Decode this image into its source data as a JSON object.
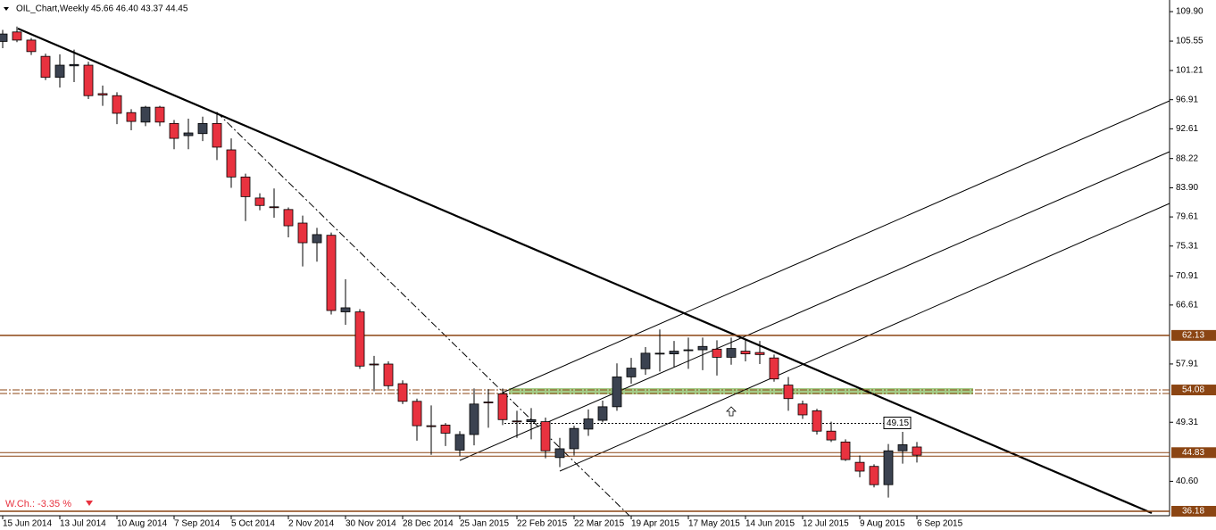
{
  "chart_data": {
    "type": "candlestick",
    "header": "OIL_Chart,Weekly",
    "header_values": "45.66 46.40 43.37 44.45",
    "change_label": "W.Ch.: -3.35 %",
    "categories": [
      "15 Jun 2014",
      null,
      null,
      null,
      "13 Jul 2014",
      null,
      null,
      null,
      "10 Aug 2014",
      null,
      null,
      null,
      "7 Sep 2014",
      null,
      null,
      null,
      "5 Oct 2014",
      null,
      null,
      null,
      "2 Nov 2014",
      null,
      null,
      null,
      "30 Nov 2014",
      null,
      null,
      null,
      "28 Dec 2014",
      null,
      null,
      null,
      "25 Jan 2015",
      null,
      null,
      null,
      "22 Feb 2015",
      null,
      null,
      null,
      "22 Mar 2015",
      null,
      null,
      null,
      "19 Apr 2015",
      null,
      null,
      null,
      "17 May 2015",
      null,
      null,
      null,
      "14 Jun 2015",
      null,
      null,
      null,
      "12 Jul 2015",
      null,
      null,
      null,
      "9 Aug 2015",
      null,
      null,
      null,
      "6 Sep 2015"
    ],
    "open": [
      105.5,
      106.9,
      105.7,
      103.3,
      100.2,
      101.9,
      102.0,
      97.8,
      97.5,
      95.0,
      93.6,
      95.8,
      93.4,
      91.6,
      91.9,
      93.4,
      89.5,
      85.5,
      82.4,
      81.1,
      80.7,
      78.7,
      75.8,
      76.9,
      65.6,
      65.6,
      57.9,
      57.9,
      55.0,
      52.4,
      48.8,
      48.9,
      45.2,
      47.5,
      52.3,
      53.5,
      49.5,
      49.4,
      49.4,
      44.1,
      45.4,
      48.3,
      49.6,
      51.6,
      56.0,
      57.2,
      59.4,
      59.4,
      60.0,
      60.0,
      60.1,
      58.9,
      59.8,
      59.6,
      58.8,
      54.8,
      52.0,
      51.0,
      48.0,
      46.4,
      43.4,
      42.8,
      40.1,
      45.1,
      45.66
    ],
    "high": [
      107.2,
      107.7,
      106.0,
      103.7,
      103.6,
      104.3,
      102.5,
      99.0,
      98.0,
      95.5,
      96.0,
      96.0,
      93.9,
      94.1,
      94.4,
      95.1,
      91.2,
      86.0,
      83.1,
      83.8,
      81.0,
      79.8,
      78.0,
      77.3,
      70.4,
      66.0,
      59.1,
      58.3,
      55.5,
      52.8,
      51.8,
      49.2,
      48.0,
      54.3,
      54.2,
      54.3,
      51.0,
      51.4,
      50.0,
      47.0,
      48.8,
      51.2,
      52.5,
      58.0,
      58.8,
      60.4,
      63.0,
      61.3,
      61.8,
      61.8,
      61.4,
      61.8,
      61.6,
      61.3,
      59.3,
      56.0,
      52.5,
      51.3,
      49.4,
      46.8,
      44.4,
      43.1,
      46.1,
      47.9,
      46.4
    ],
    "low": [
      104.5,
      105.4,
      103.5,
      99.8,
      98.7,
      99.5,
      97.0,
      96.0,
      93.3,
      92.4,
      93.0,
      93.0,
      89.6,
      89.6,
      90.8,
      88.0,
      83.9,
      79.0,
      80.6,
      79.5,
      76.6,
      72.3,
      73.0,
      65.2,
      63.7,
      57.2,
      53.9,
      54.2,
      52.0,
      46.6,
      44.5,
      45.8,
      44.3,
      45.9,
      48.5,
      48.9,
      47.0,
      46.8,
      44.0,
      42.7,
      44.4,
      47.3,
      49.3,
      51.0,
      55.0,
      56.3,
      56.8,
      57.5,
      57.2,
      57.0,
      56.2,
      57.8,
      58.3,
      57.9,
      55.3,
      51.0,
      49.8,
      47.5,
      46.4,
      43.6,
      41.2,
      39.7,
      38.2,
      43.2,
      43.37
    ],
    "close": [
      106.6,
      105.7,
      104.0,
      100.2,
      102.0,
      102.1,
      97.5,
      97.6,
      94.9,
      93.7,
      95.8,
      93.6,
      91.2,
      92.0,
      93.4,
      89.9,
      85.5,
      82.6,
      81.3,
      81.0,
      78.3,
      75.8,
      77.0,
      65.8,
      66.2,
      57.6,
      57.8,
      54.7,
      52.4,
      48.8,
      48.7,
      47.7,
      47.5,
      52.0,
      52.2,
      49.7,
      49.4,
      49.7,
      45.1,
      45.4,
      48.4,
      49.8,
      51.6,
      56.0,
      57.3,
      59.5,
      59.5,
      59.8,
      60.0,
      60.5,
      58.9,
      60.2,
      59.4,
      59.3,
      55.7,
      52.8,
      50.4,
      48.0,
      46.7,
      43.8,
      42.1,
      40.1,
      45.1,
      46.0,
      44.45
    ],
    "up_color": "#3b4250",
    "down_color": "#e8323f",
    "ylim": [
      35.52,
      111.22
    ],
    "yticks": [
      {
        "value": 109.9,
        "label": "109.90"
      },
      {
        "value": 105.55,
        "label": "105.55"
      },
      {
        "value": 101.21,
        "label": "101.21"
      },
      {
        "value": 96.91,
        "label": "96.91"
      },
      {
        "value": 92.61,
        "label": "92.61"
      },
      {
        "value": 88.22,
        "label": "88.22"
      },
      {
        "value": 83.9,
        "label": "83.90"
      },
      {
        "value": 79.61,
        "label": "79.61"
      },
      {
        "value": 75.31,
        "label": "75.31"
      },
      {
        "value": 70.91,
        "label": "70.91"
      },
      {
        "value": 66.61,
        "label": "66.61"
      },
      {
        "value": 57.91,
        "label": "57.91"
      },
      {
        "value": 49.31,
        "label": "49.31"
      },
      {
        "value": 40.6,
        "label": "40.60"
      }
    ],
    "levels": [
      62.13,
      54.08,
      44.83,
      36.18
    ],
    "level_color": "#8b4513",
    "marker": 49.15
  }
}
